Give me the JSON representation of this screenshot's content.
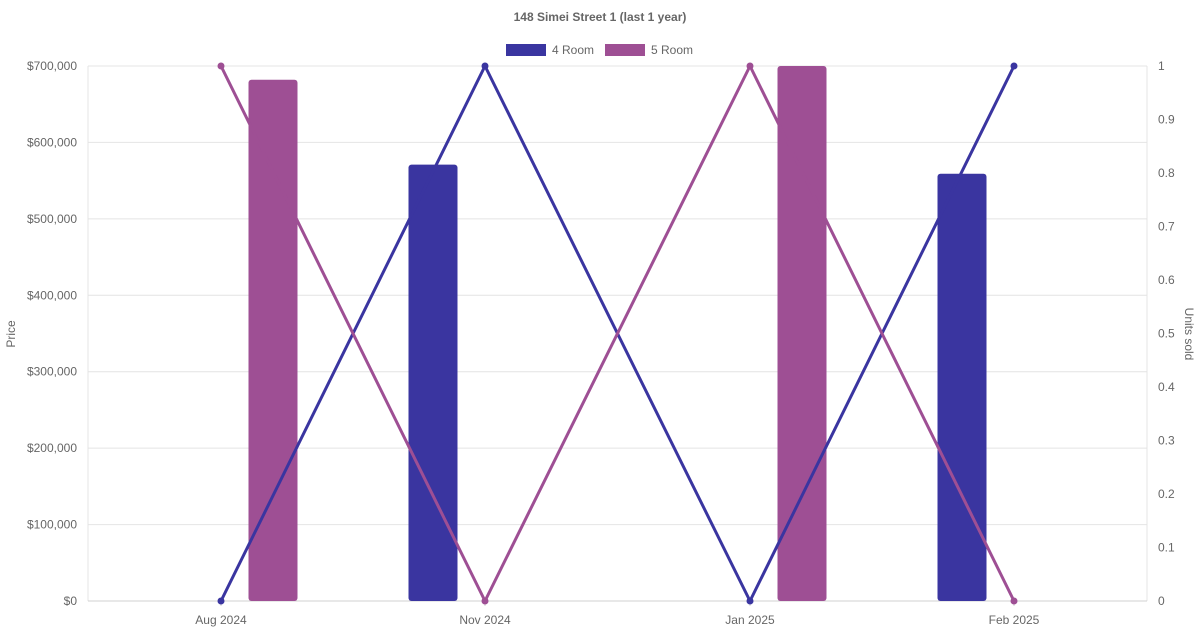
{
  "chart_data": {
    "type": "bar",
    "title": "148 Simei Street 1 (last 1 year)",
    "categories": [
      "Aug 2024",
      "Nov 2024",
      "Jan 2025",
      "Feb 2025"
    ],
    "y_left": {
      "label": "Price",
      "min": 0,
      "max": 700000,
      "step": 100000,
      "tick_labels": [
        "$0",
        "$100,000",
        "$200,000",
        "$300,000",
        "$400,000",
        "$500,000",
        "$600,000",
        "$700,000"
      ]
    },
    "y_right": {
      "label": "Units sold",
      "min": 0,
      "max": 1,
      "step": 0.1,
      "tick_labels": [
        "0",
        "0.1",
        "0.2",
        "0.3",
        "0.4",
        "0.5",
        "0.6",
        "0.7",
        "0.8",
        "0.9",
        "1"
      ]
    },
    "series": [
      {
        "name": "4 Room",
        "color": "#3a35a0",
        "bar_values": [
          0,
          571000,
          0,
          559000
        ],
        "line_values": [
          0,
          1,
          0,
          1
        ]
      },
      {
        "name": "5 Room",
        "color": "#9e4f94",
        "bar_values": [
          682000,
          0,
          700000,
          0
        ],
        "line_values": [
          1,
          0,
          1,
          0
        ]
      }
    ],
    "legend_position": "top",
    "grid": true
  }
}
